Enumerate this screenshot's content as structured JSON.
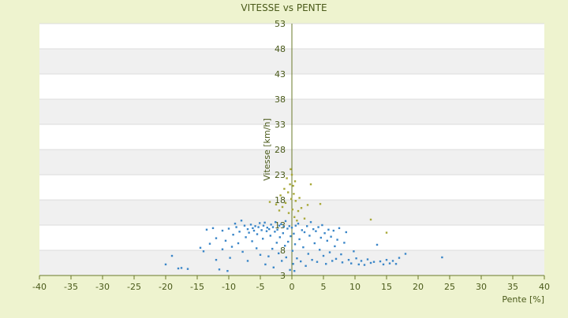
{
  "chart_data": {
    "type": "scatter",
    "title": "VITESSE vs PENTE",
    "xlabel": "Pente [%]",
    "ylabel": "Vitesse [km/h]",
    "xlim": [
      -40,
      40
    ],
    "ylim": [
      3,
      53
    ],
    "x_ticks": [
      -40,
      -35,
      -30,
      -25,
      -20,
      -15,
      -10,
      -5,
      0,
      5,
      10,
      15,
      20,
      25,
      30,
      35,
      40
    ],
    "y_ticks": [
      3,
      8,
      13,
      18,
      23,
      28,
      33,
      38,
      43,
      48,
      53
    ],
    "grid": "horizontal bands",
    "legend": "none",
    "colors": {
      "background": "#eef3cf",
      "plot_band_light": "#ffffff",
      "plot_band_dark": "#f0f0f0",
      "axis_text": "#4a5a1a",
      "series_main": "#3a86c8",
      "series_fast": "#a8a838"
    },
    "series": [
      {
        "color": "#3a86c8",
        "points": [
          [
            -20.0,
            5.2
          ],
          [
            -19.0,
            6.9
          ],
          [
            -18.0,
            4.4
          ],
          [
            -17.5,
            4.5
          ],
          [
            -16.5,
            4.3
          ],
          [
            -14.5,
            8.5
          ],
          [
            -14.0,
            7.8
          ],
          [
            -13.5,
            12.1
          ],
          [
            -13.0,
            9.3
          ],
          [
            -12.5,
            12.4
          ],
          [
            -12.0,
            6.1
          ],
          [
            -12.0,
            10.4
          ],
          [
            -11.5,
            4.2
          ],
          [
            -11.0,
            8.2
          ],
          [
            -11.0,
            11.9
          ],
          [
            -10.5,
            9.9
          ],
          [
            -10.2,
            3.9
          ],
          [
            -10.0,
            12.3
          ],
          [
            -9.8,
            6.5
          ],
          [
            -9.5,
            8.7
          ],
          [
            -9.3,
            11.1
          ],
          [
            -9.0,
            13.3
          ],
          [
            -8.8,
            12.6
          ],
          [
            -8.5,
            9.4
          ],
          [
            -8.3,
            11.7
          ],
          [
            -8.0,
            13.9
          ],
          [
            -7.8,
            7.7
          ],
          [
            -7.5,
            12.9
          ],
          [
            -7.3,
            10.6
          ],
          [
            -7.0,
            5.9
          ],
          [
            -7.0,
            12.2
          ],
          [
            -6.8,
            11.5
          ],
          [
            -6.5,
            13.1
          ],
          [
            -6.3,
            9.8
          ],
          [
            -6.2,
            12.4
          ],
          [
            -6.0,
            11.9
          ],
          [
            -5.8,
            12.8
          ],
          [
            -5.6,
            8.4
          ],
          [
            -5.5,
            11.2
          ],
          [
            -5.3,
            12.6
          ],
          [
            -5.1,
            13.4
          ],
          [
            -5.0,
            7.1
          ],
          [
            -4.8,
            12.0
          ],
          [
            -4.6,
            10.3
          ],
          [
            -4.5,
            12.9
          ],
          [
            -4.3,
            13.5
          ],
          [
            -4.2,
            5.2
          ],
          [
            -4.0,
            11.8
          ],
          [
            -3.9,
            12.5
          ],
          [
            -3.7,
            6.8
          ],
          [
            -3.6,
            12.2
          ],
          [
            -3.4,
            10.9
          ],
          [
            -3.3,
            13.1
          ],
          [
            -3.1,
            8.3
          ],
          [
            -3.0,
            12.6
          ],
          [
            -2.9,
            4.6
          ],
          [
            -2.7,
            11.7
          ],
          [
            -2.6,
            13.6
          ],
          [
            -2.4,
            9.5
          ],
          [
            -2.3,
            12.1
          ],
          [
            -2.1,
            7.4
          ],
          [
            -2.0,
            12.9
          ],
          [
            -1.9,
            10.6
          ],
          [
            -1.7,
            13.2
          ],
          [
            -1.6,
            5.9
          ],
          [
            -1.4,
            11.4
          ],
          [
            -1.3,
            12.7
          ],
          [
            -1.1,
            8.9
          ],
          [
            -1.0,
            13.8
          ],
          [
            -0.9,
            6.6
          ],
          [
            -0.7,
            12.3
          ],
          [
            -0.6,
            9.7
          ],
          [
            -0.4,
            12.8
          ],
          [
            -0.3,
            4.1
          ],
          [
            -0.2,
            10.8
          ],
          [
            0.0,
            12.5
          ],
          [
            0.1,
            7.9
          ],
          [
            0.2,
            5.3
          ],
          [
            0.3,
            11.3
          ],
          [
            0.4,
            3.9
          ],
          [
            0.5,
            9.2
          ],
          [
            0.6,
            12.9
          ],
          [
            0.8,
            6.4
          ],
          [
            1.0,
            13.3
          ],
          [
            1.2,
            10.2
          ],
          [
            1.4,
            5.8
          ],
          [
            1.6,
            12.0
          ],
          [
            1.8,
            8.6
          ],
          [
            2.0,
            11.6
          ],
          [
            2.2,
            4.9
          ],
          [
            2.4,
            12.8
          ],
          [
            2.6,
            7.3
          ],
          [
            2.8,
            10.9
          ],
          [
            3.0,
            13.6
          ],
          [
            3.2,
            6.1
          ],
          [
            3.4,
            12.2
          ],
          [
            3.6,
            9.4
          ],
          [
            3.8,
            11.8
          ],
          [
            4.0,
            5.7
          ],
          [
            4.2,
            12.6
          ],
          [
            4.4,
            8.1
          ],
          [
            4.6,
            10.5
          ],
          [
            4.8,
            13.0
          ],
          [
            5.0,
            6.9
          ],
          [
            5.2,
            11.4
          ],
          [
            5.4,
            5.3
          ],
          [
            5.6,
            9.9
          ],
          [
            5.8,
            12.1
          ],
          [
            6.0,
            7.6
          ],
          [
            6.2,
            10.7
          ],
          [
            6.4,
            5.9
          ],
          [
            6.6,
            11.9
          ],
          [
            6.8,
            8.8
          ],
          [
            7.0,
            6.3
          ],
          [
            7.2,
            10.1
          ],
          [
            7.5,
            12.4
          ],
          [
            7.8,
            7.2
          ],
          [
            8.0,
            5.6
          ],
          [
            8.3,
            9.5
          ],
          [
            8.6,
            11.6
          ],
          [
            9.0,
            6.1
          ],
          [
            9.4,
            5.4
          ],
          [
            9.8,
            7.8
          ],
          [
            10.2,
            6.4
          ],
          [
            10.6,
            5.2
          ],
          [
            11.0,
            5.9
          ],
          [
            11.5,
            5.1
          ],
          [
            12.0,
            6.2
          ],
          [
            12.5,
            5.5
          ],
          [
            13.0,
            5.7
          ],
          [
            13.5,
            9.1
          ],
          [
            14.0,
            5.8
          ],
          [
            14.5,
            5.2
          ],
          [
            15.0,
            6.1
          ],
          [
            15.5,
            5.4
          ],
          [
            16.0,
            5.9
          ],
          [
            16.5,
            5.3
          ],
          [
            17.0,
            6.5
          ],
          [
            18.0,
            7.3
          ],
          [
            23.8,
            6.6
          ]
        ]
      },
      {
        "color": "#a8a838",
        "points": [
          [
            -3.5,
            17.6
          ],
          [
            -2.5,
            17.1
          ],
          [
            -2.0,
            15.9
          ],
          [
            -1.8,
            18.9
          ],
          [
            -1.5,
            16.6
          ],
          [
            -1.2,
            20.2
          ],
          [
            -1.0,
            17.4
          ],
          [
            -0.8,
            22.3
          ],
          [
            -0.6,
            19.5
          ],
          [
            -0.5,
            15.4
          ],
          [
            -0.3,
            21.1
          ],
          [
            -0.2,
            24.1
          ],
          [
            -0.1,
            18.2
          ],
          [
            0.0,
            23.0
          ],
          [
            0.1,
            16.1
          ],
          [
            0.2,
            20.8
          ],
          [
            0.3,
            19.2
          ],
          [
            0.4,
            14.6
          ],
          [
            0.5,
            21.7
          ],
          [
            0.6,
            17.8
          ],
          [
            0.8,
            13.9
          ],
          [
            1.0,
            15.8
          ],
          [
            1.2,
            18.4
          ],
          [
            1.5,
            16.4
          ],
          [
            2.0,
            14.3
          ],
          [
            2.5,
            17.0
          ],
          [
            3.0,
            21.1
          ],
          [
            4.5,
            17.2
          ],
          [
            12.5,
            14.1
          ],
          [
            15.0,
            11.5
          ]
        ]
      }
    ]
  }
}
